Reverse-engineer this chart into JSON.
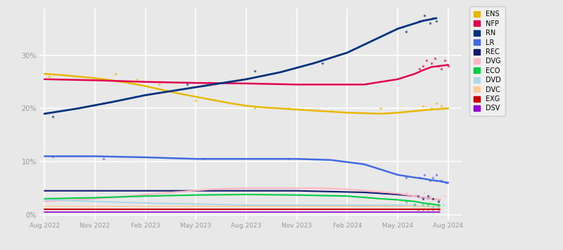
{
  "bg_color": "#e8e8e8",
  "plot_bg_color": "#e8e8e8",
  "grid_color": "#ffffff",
  "yticks": [
    0,
    10,
    20,
    30
  ],
  "ylim": [
    -1,
    39
  ],
  "xlim": [
    -0.3,
    24.8
  ],
  "legend_entries": [
    "ENS",
    "NFP",
    "RN",
    "LR",
    "REC",
    "DVG",
    "ECO",
    "DVD",
    "DVC",
    "EXG",
    "DSV"
  ],
  "legend_colors": [
    "#e8b800",
    "#e0004e",
    "#00327d",
    "#4169e1",
    "#0f1a6e",
    "#ffb6c1",
    "#00cc44",
    "#add8e6",
    "#ffcc99",
    "#cc0000",
    "#9400d3"
  ],
  "xtick_positions": [
    0,
    3,
    6,
    9,
    12,
    15,
    18,
    21,
    24
  ],
  "xtick_labels": [
    "Aug 2022",
    "Nov 2022",
    "Feb 2023",
    "May 2023",
    "Aug 2023",
    "Nov 2023",
    "Feb 2024",
    "May 2024",
    "Aug 2024"
  ],
  "series": {
    "ENS": {
      "color": "#e8b800",
      "lw": 1.8,
      "smooth_x": [
        0,
        1,
        2,
        3,
        4,
        5,
        6,
        7,
        8,
        9,
        10,
        11,
        12,
        13,
        14,
        15,
        16,
        17,
        18,
        19,
        20,
        21,
        22,
        23,
        24
      ],
      "smooth_y": [
        26.5,
        26.3,
        26.0,
        25.7,
        25.3,
        24.8,
        24.2,
        23.5,
        22.8,
        22.2,
        21.6,
        21.0,
        20.5,
        20.2,
        20.0,
        19.8,
        19.6,
        19.4,
        19.2,
        19.1,
        19.0,
        19.2,
        19.5,
        19.8,
        20.0
      ],
      "scatter_x": [
        0.3,
        4.2,
        5.5,
        6.8,
        9.0,
        12.5,
        14.5,
        17.0,
        20.0,
        22.5,
        23.0,
        23.3,
        23.6,
        23.8
      ],
      "scatter_y": [
        26.0,
        26.5,
        25.5,
        24.5,
        21.5,
        20.0,
        20.0,
        19.5,
        20.0,
        20.5,
        20.0,
        21.0,
        20.5,
        20.0
      ]
    },
    "NFP": {
      "color": "#e0004e",
      "lw": 1.8,
      "smooth_x": [
        0,
        3,
        6,
        9,
        12,
        15,
        18,
        19,
        20,
        21,
        22,
        22.5,
        23,
        23.5,
        24
      ],
      "smooth_y": [
        25.5,
        25.3,
        25.0,
        24.8,
        24.7,
        24.5,
        24.5,
        24.5,
        25.0,
        25.5,
        26.5,
        27.2,
        27.8,
        28.0,
        28.2
      ],
      "scatter_x": [
        22.3,
        22.5,
        22.7,
        23.0,
        23.2,
        23.4,
        23.6,
        23.8,
        24.0
      ],
      "scatter_y": [
        27.5,
        28.0,
        29.0,
        28.5,
        29.5,
        28.0,
        27.5,
        29.0,
        28.0
      ]
    },
    "RN": {
      "color": "#00327d",
      "lw": 2.0,
      "smooth_x": [
        0,
        2,
        4,
        6,
        8,
        10,
        12,
        14,
        16,
        18,
        19,
        20,
        21,
        22,
        22.5,
        23,
        23.3
      ],
      "smooth_y": [
        19.0,
        20.0,
        21.2,
        22.5,
        23.5,
        24.5,
        25.5,
        26.8,
        28.5,
        30.5,
        32.0,
        33.5,
        35.0,
        36.0,
        36.5,
        36.8,
        37.0
      ],
      "scatter_x": [
        0.5,
        3.5,
        8.5,
        12.5,
        16.5,
        21.5,
        22.3,
        22.6,
        22.9,
        23.1,
        23.3
      ],
      "scatter_y": [
        18.5,
        21.0,
        24.5,
        27.0,
        28.5,
        34.5,
        36.5,
        37.5,
        36.0,
        37.0,
        36.5
      ]
    },
    "LR": {
      "color": "#4169e1",
      "lw": 1.8,
      "smooth_x": [
        0,
        3,
        6,
        9,
        12,
        15,
        17,
        19,
        20,
        21,
        22,
        22.5,
        23,
        23.5,
        24
      ],
      "smooth_y": [
        11.0,
        11.0,
        10.8,
        10.5,
        10.5,
        10.5,
        10.3,
        9.5,
        8.5,
        7.5,
        7.0,
        6.8,
        6.5,
        6.3,
        6.0
      ],
      "scatter_x": [
        0.5,
        3.5,
        9.5,
        14.5,
        21.5,
        22.3,
        22.6,
        22.9,
        23.1,
        23.3,
        23.6,
        23.9
      ],
      "scatter_y": [
        11.0,
        10.5,
        10.5,
        10.5,
        7.0,
        7.0,
        7.5,
        6.5,
        7.0,
        7.5,
        6.5,
        6.0
      ]
    },
    "REC": {
      "color": "#0f1a6e",
      "lw": 1.5,
      "smooth_x": [
        0,
        5,
        10,
        15,
        19,
        21,
        22,
        22.5,
        23,
        23.5
      ],
      "smooth_y": [
        4.5,
        4.5,
        4.5,
        4.5,
        4.2,
        3.8,
        3.5,
        3.2,
        3.0,
        2.8
      ],
      "scatter_x": [
        22.2,
        22.5,
        22.8,
        23.1,
        23.4
      ],
      "scatter_y": [
        3.5,
        3.0,
        3.5,
        3.0,
        2.5
      ]
    },
    "DVG": {
      "color": "#ffb6c1",
      "lw": 1.5,
      "smooth_x": [
        0,
        2,
        4,
        6,
        8,
        10,
        12,
        14,
        16,
        18,
        20,
        21,
        22,
        22.5,
        23,
        23.5
      ],
      "smooth_y": [
        2.5,
        2.8,
        3.2,
        3.8,
        4.3,
        4.8,
        5.0,
        5.0,
        5.0,
        4.8,
        4.3,
        4.0,
        3.5,
        3.2,
        3.0,
        2.8
      ],
      "scatter_x": [
        21.5,
        22.0,
        22.3,
        22.6,
        22.9,
        23.2,
        23.5,
        23.8
      ],
      "scatter_y": [
        4.0,
        3.5,
        3.5,
        4.0,
        3.5,
        3.0,
        3.0,
        3.5
      ]
    },
    "ECO": {
      "color": "#00cc44",
      "lw": 1.5,
      "smooth_x": [
        0,
        3,
        6,
        9,
        12,
        15,
        18,
        20,
        21,
        22,
        22.5,
        23,
        23.5
      ],
      "smooth_y": [
        3.0,
        3.2,
        3.5,
        3.7,
        3.8,
        3.7,
        3.5,
        3.0,
        2.8,
        2.5,
        2.2,
        2.0,
        1.8
      ],
      "scatter_x": [
        21.5,
        22.0,
        22.5,
        22.8,
        23.1,
        23.4
      ],
      "scatter_y": [
        2.5,
        2.0,
        2.0,
        2.0,
        1.5,
        1.5
      ]
    },
    "DVD": {
      "color": "#add8e6",
      "lw": 1.5,
      "smooth_x": [
        0,
        3,
        6,
        9,
        12,
        15,
        18,
        20,
        21,
        22,
        22.5,
        23,
        23.5
      ],
      "smooth_y": [
        2.8,
        2.5,
        2.2,
        2.0,
        1.8,
        1.8,
        1.8,
        1.8,
        1.8,
        1.7,
        1.6,
        1.5,
        1.5
      ],
      "scatter_x": [
        21.5,
        22.0,
        22.5,
        22.8,
        23.1,
        23.4,
        23.7
      ],
      "scatter_y": [
        2.0,
        1.5,
        2.0,
        1.5,
        1.5,
        1.5,
        2.0
      ]
    },
    "DVC": {
      "color": "#ffcc99",
      "lw": 1.2,
      "smooth_x": [
        0,
        5,
        10,
        15,
        20,
        23.5
      ],
      "smooth_y": [
        1.5,
        1.5,
        1.5,
        1.5,
        1.5,
        1.5
      ],
      "scatter_x": [],
      "scatter_y": []
    },
    "EXG": {
      "color": "#cc0000",
      "lw": 1.5,
      "smooth_x": [
        0,
        5,
        10,
        15,
        20,
        21,
        22,
        22.5,
        23,
        23.5
      ],
      "smooth_y": [
        1.0,
        1.0,
        1.0,
        1.0,
        1.0,
        1.0,
        1.0,
        1.0,
        1.0,
        1.0
      ],
      "scatter_x": [
        22.2,
        22.5,
        22.8,
        23.1,
        23.4
      ],
      "scatter_y": [
        1.0,
        1.0,
        1.0,
        1.0,
        1.0
      ]
    },
    "DSV": {
      "color": "#9400d3",
      "lw": 1.2,
      "smooth_x": [
        0,
        5,
        10,
        15,
        20,
        23.5
      ],
      "smooth_y": [
        0.5,
        0.5,
        0.5,
        0.5,
        0.5,
        0.5
      ],
      "scatter_x": [],
      "scatter_y": []
    }
  }
}
